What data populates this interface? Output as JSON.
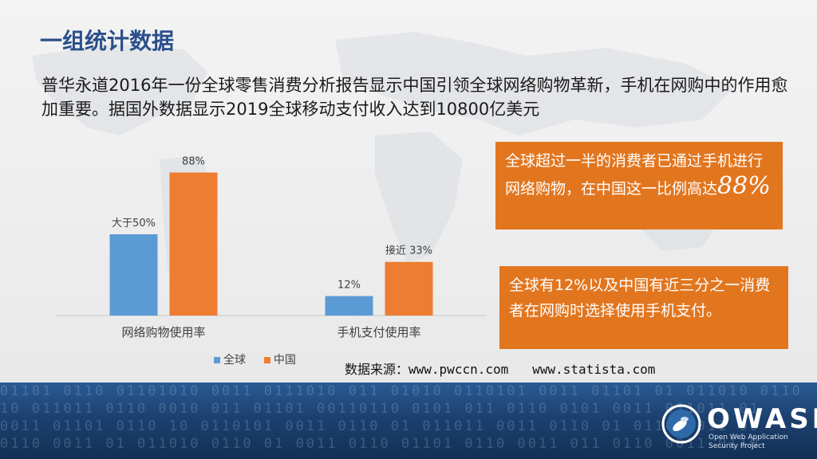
{
  "title": "一组统计数据",
  "intro": "普华永道2016年一份全球零售消费分析报告显示中国引领全球网络购物革新，手机在网购中的作用愈加重要。据国外数据显示2019全球移动支付收入达到10800亿美元",
  "chart_data": {
    "type": "bar",
    "categories": [
      "网络购物使用率",
      "手机支付使用率"
    ],
    "series": [
      {
        "name": "全球",
        "values": [
          50,
          12
        ],
        "labels": [
          "大于50%",
          "12%"
        ],
        "color": "#5b9bd5"
      },
      {
        "name": "中国",
        "values": [
          88,
          33
        ],
        "labels": [
          "88%",
          "接近 33%"
        ],
        "color": "#ed7d31"
      }
    ],
    "ylim": [
      0,
      100
    ],
    "grid": false,
    "legend": "bottom"
  },
  "callout1": {
    "text": "全球超过一半的消费者已通过手机进行网络购物，在中国这一比例高达",
    "highlight": "88%"
  },
  "callout2": {
    "text": "全球有12%以及中国有近三分之一消费者在网购时选择使用手机支付。"
  },
  "source": {
    "label": "数据来源：",
    "link1": "www.pwccn.com",
    "link2": "www.statista.com"
  },
  "logo": {
    "word": "OWASP",
    "sub1": "Open Web Application",
    "sub2": "Security Project"
  },
  "colors": {
    "accent": "#e2761f",
    "title": "#2b4f8a",
    "series1": "#5b9bd5",
    "series2": "#ed7d31"
  },
  "icons": {
    "logo_mark": "wasp-icon"
  }
}
